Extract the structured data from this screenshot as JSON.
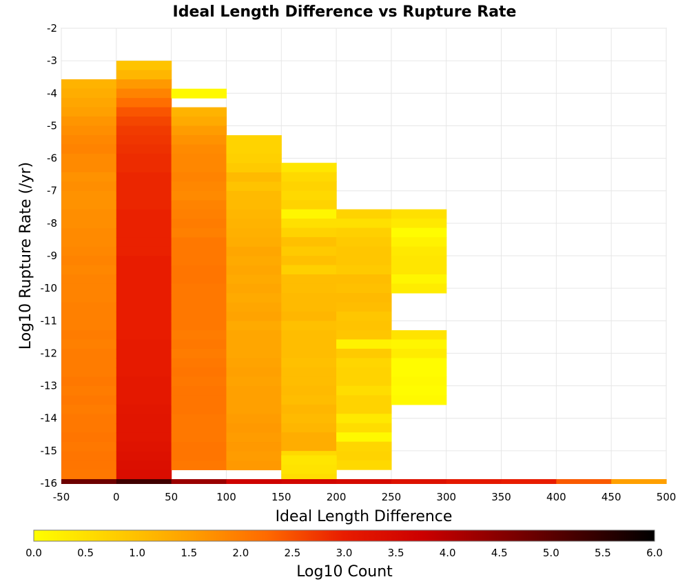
{
  "chart_data": {
    "type": "heatmap",
    "title": "Ideal Length Difference vs Rupture Rate",
    "xlabel": "Ideal Length Difference",
    "ylabel": "Log10 Rupture Rate (/yr)",
    "xlim": [
      -50,
      500
    ],
    "ylim": [
      -16,
      -2
    ],
    "xticks": [
      "-50",
      "0",
      "50",
      "100",
      "150",
      "200",
      "250",
      "300",
      "350",
      "400",
      "450",
      "500"
    ],
    "yticks": [
      "-2",
      "-3",
      "-4",
      "-5",
      "-6",
      "-7",
      "-8",
      "-9",
      "-10",
      "-11",
      "-12",
      "-13",
      "-14",
      "-15",
      "-16"
    ],
    "x_bin_width": 50,
    "y_bin_height": 0.286,
    "bin_rows_from_top_edge": 0,
    "grid": true,
    "colorbar": {
      "label": "Log10 Count",
      "min": 0.0,
      "max": 6.0,
      "ticks": [
        "0.0",
        "0.5",
        "1.0",
        "1.5",
        "2.0",
        "2.5",
        "3.0",
        "3.5",
        "4.0",
        "4.5",
        "5.0",
        "5.5",
        "6.0"
      ],
      "colors": [
        "#ffff00",
        "#ffd000",
        "#ffa000",
        "#ff6a00",
        "#e81c00",
        "#cc0000",
        "#880000",
        "#440000",
        "#000000"
      ]
    },
    "columns": [
      {
        "x_start": -50,
        "y_top": -3.57,
        "values": [
          1.2,
          1.3,
          1.4,
          1.5,
          1.65,
          1.75,
          1.85,
          1.9,
          1.8,
          1.8,
          1.7,
          1.75,
          1.7,
          1.7,
          1.75,
          1.75,
          1.8,
          1.8,
          1.85,
          1.9,
          1.85,
          1.9,
          1.9,
          1.9,
          1.95,
          1.95,
          1.95,
          2.0,
          1.95,
          2.0,
          2.0,
          2.0,
          2.05,
          2.0,
          2.05,
          2.0,
          2.05,
          2.05,
          2.1,
          2.05,
          2.1,
          2.1,
          2.05
        ]
      },
      {
        "x_start": 0,
        "y_top": -3.0,
        "values": [
          0.95,
          1.15,
          1.6,
          1.9,
          2.2,
          2.45,
          2.6,
          2.7,
          2.75,
          2.8,
          2.85,
          2.85,
          2.9,
          2.9,
          2.9,
          2.9,
          2.95,
          2.95,
          2.95,
          2.95,
          2.95,
          3.0,
          3.0,
          3.0,
          3.0,
          3.0,
          3.0,
          3.0,
          3.0,
          3.0,
          3.05,
          3.05,
          3.05,
          3.05,
          3.1,
          3.1,
          3.1,
          3.15,
          3.2,
          3.2,
          3.2,
          3.25,
          3.3,
          3.35,
          3.4
        ]
      },
      {
        "x_start": 50,
        "y_top": -4.43,
        "values": [
          1.2,
          1.35,
          1.55,
          1.7,
          1.8,
          1.85,
          1.85,
          1.9,
          1.85,
          1.8,
          1.9,
          1.95,
          2.0,
          1.95,
          2.05,
          2.05,
          2.05,
          2.1,
          2.1,
          2.05,
          2.05,
          2.05,
          2.05,
          2.05,
          2.0,
          2.05,
          2.0,
          2.05,
          2.1,
          2.05,
          2.1,
          2.1,
          2.1,
          2.05,
          2.05,
          2.05,
          2.1,
          2.1,
          2.05
        ]
      },
      {
        "x_start": 100,
        "y_top": -5.29,
        "values": [
          0.7,
          0.7,
          0.75,
          0.85,
          1.1,
          0.95,
          1.1,
          1.1,
          1.15,
          1.2,
          1.25,
          1.3,
          1.4,
          1.35,
          1.4,
          1.35,
          1.4,
          1.35,
          1.4,
          1.45,
          1.35,
          1.4,
          1.4,
          1.4,
          1.45,
          1.5,
          1.45,
          1.5,
          1.5,
          1.5,
          1.55,
          1.6,
          1.55,
          1.6,
          1.55,
          1.6
        ]
      },
      {
        "x_start": 150,
        "y_top": -6.14,
        "values": [
          0.4,
          0.6,
          0.7,
          0.6,
          0.7,
          0.15,
          0.5,
          0.7,
          1.0,
          0.85,
          1.0,
          0.75,
          1.05,
          1.05,
          1.1,
          1.1,
          1.15,
          1.0,
          1.05,
          1.05,
          1.05,
          1.0,
          1.05,
          1.05,
          1.1,
          1.05,
          1.15,
          1.1,
          1.15,
          1.3,
          1.3,
          0.6,
          0.7
        ]
      },
      {
        "x_start": 200,
        "y_top": -7.57,
        "values": [
          0.7,
          0.5,
          0.75,
          0.85,
          0.9,
          0.9,
          0.85,
          1.05,
          1.0,
          1.1,
          1.05,
          0.9,
          0.95,
          0.9,
          0.2,
          0.85,
          0.65,
          0.7,
          0.7,
          0.55,
          0.7,
          0.7,
          0.35,
          0.55,
          0.1,
          0.65,
          0.7,
          0.6
        ]
      },
      {
        "x_start": 250,
        "y_top": -7.57,
        "values": [
          0.5,
          0.35,
          0.05,
          0.2,
          0.35,
          0.4,
          0.4,
          0.15,
          0.3
        ]
      },
      {
        "x_start": 250,
        "y_top": -11.29,
        "values": [
          0.45,
          0.15,
          0.3,
          0.05,
          0.05,
          0.1,
          0.05,
          0.1
        ]
      },
      {
        "x_start": 50,
        "y_top": -3.86,
        "values": [
          0.1
        ]
      },
      {
        "x_start": 150,
        "y_top": -15.14,
        "values": [
          0.4,
          0.45,
          0.55
        ]
      }
    ],
    "bottom_row": {
      "y": -16.0,
      "x_starts": [
        -50,
        0,
        50,
        100,
        150,
        200,
        250,
        300,
        350,
        400,
        450
      ],
      "values": [
        4.8,
        5.3,
        4.3,
        3.7,
        3.6,
        3.5,
        3.3,
        3.1,
        3.0,
        2.4,
        1.5
      ]
    }
  }
}
